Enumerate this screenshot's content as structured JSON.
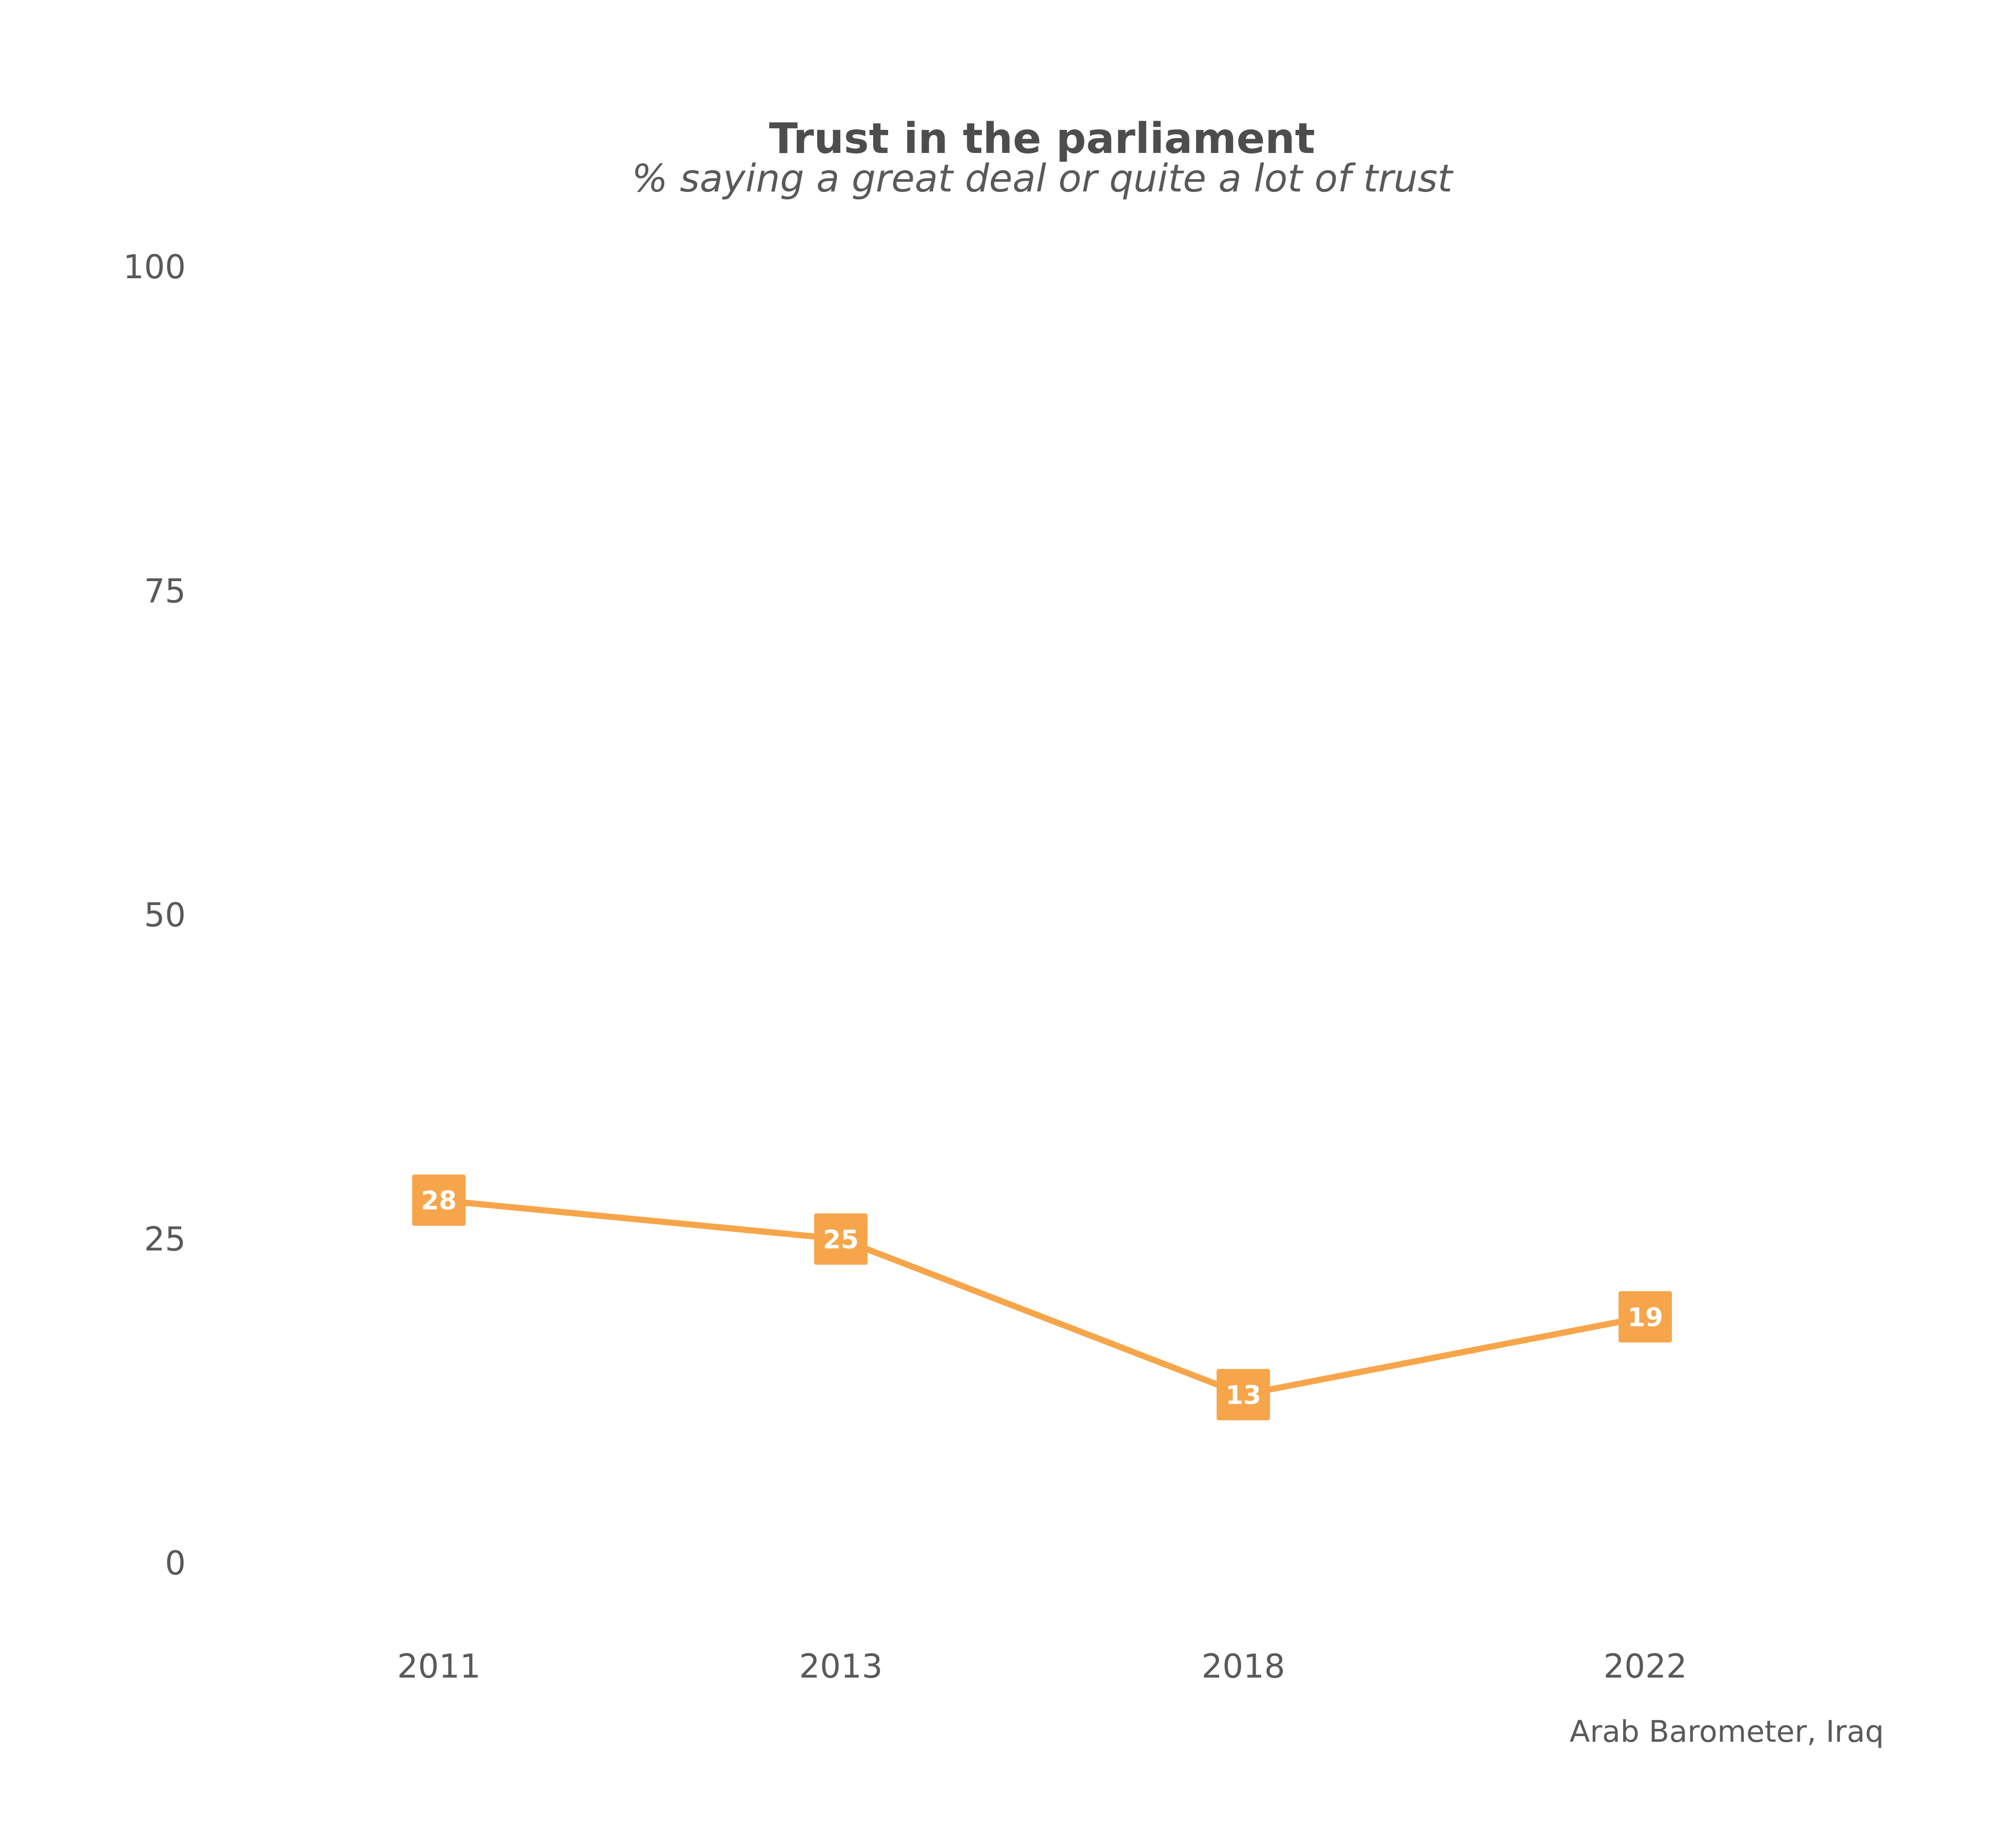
{
  "chart_data": {
    "type": "line",
    "title": "Trust in the parliament",
    "subtitle": "% saying a great deal or quite a lot of trust",
    "caption": "Arab Barometer, Iraq",
    "xlabel": "",
    "ylabel": "",
    "categories": [
      "2011",
      "2013",
      "2018",
      "2022"
    ],
    "series": [
      {
        "values": [
          28,
          25,
          13,
          19
        ],
        "color": "#F7A54A"
      }
    ],
    "ylim": [
      0,
      100
    ],
    "yticks": [
      0,
      25,
      50,
      75,
      100
    ],
    "grid": false,
    "legend": "none",
    "data_labels": true,
    "marker": "square-label",
    "colors": {
      "series": "#F7A54A",
      "text": "#595959",
      "title": "#4d4d4d",
      "label_text": "#ffffff",
      "background": "#ffffff"
    }
  }
}
